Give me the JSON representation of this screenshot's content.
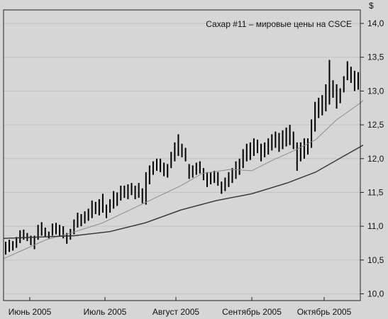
{
  "chart_data": {
    "type": "bar",
    "title": "Сахар #11 – мировые цены на CSCE",
    "ylabel": "$",
    "ylim": [
      9.9,
      14.2
    ],
    "y_ticks": [
      "14,0",
      "13,5",
      "13,0",
      "12,5",
      "12,0",
      "11,5",
      "11,0",
      "10,5",
      "10,0"
    ],
    "y_tick_values": [
      14.0,
      13.5,
      13.0,
      12.5,
      12.0,
      11.5,
      11.0,
      10.5,
      10.0
    ],
    "x_ticks": [
      "Июнь 2005",
      "Июль 2005",
      "Август 2005",
      "Сентябрь 2005",
      "Октябрь 2005"
    ],
    "grid": true,
    "series": [
      {
        "kind": "price_bars",
        "color": "#000000",
        "bars": [
          [
            10.58,
            10.77
          ],
          [
            10.62,
            10.8
          ],
          [
            10.64,
            10.78
          ],
          [
            10.68,
            10.84
          ],
          [
            10.75,
            10.94
          ],
          [
            10.8,
            10.95
          ],
          [
            10.78,
            10.9
          ],
          [
            10.72,
            10.86
          ],
          [
            10.66,
            10.86
          ],
          [
            10.8,
            11.02
          ],
          [
            10.86,
            11.06
          ],
          [
            10.85,
            10.98
          ],
          [
            10.82,
            10.92
          ],
          [
            10.86,
            11.04
          ],
          [
            10.88,
            11.05
          ],
          [
            10.86,
            11.02
          ],
          [
            10.82,
            11.0
          ],
          [
            10.74,
            10.9
          ],
          [
            10.8,
            10.96
          ],
          [
            10.88,
            11.1
          ],
          [
            10.98,
            11.2
          ],
          [
            11.0,
            11.18
          ],
          [
            11.04,
            11.22
          ],
          [
            11.08,
            11.26
          ],
          [
            11.12,
            11.38
          ],
          [
            11.18,
            11.36
          ],
          [
            11.16,
            11.4
          ],
          [
            11.2,
            11.48
          ],
          [
            11.12,
            11.32
          ],
          [
            11.2,
            11.4
          ],
          [
            11.26,
            11.52
          ],
          [
            11.3,
            11.5
          ],
          [
            11.38,
            11.6
          ],
          [
            11.42,
            11.6
          ],
          [
            11.4,
            11.62
          ],
          [
            11.46,
            11.64
          ],
          [
            11.4,
            11.6
          ],
          [
            11.42,
            11.64
          ],
          [
            11.34,
            11.56
          ],
          [
            11.32,
            11.8
          ],
          [
            11.62,
            11.9
          ],
          [
            11.76,
            11.96
          ],
          [
            11.82,
            12.0
          ],
          [
            11.8,
            12.0
          ],
          [
            11.74,
            11.94
          ],
          [
            11.72,
            11.92
          ],
          [
            11.86,
            12.1
          ],
          [
            11.96,
            12.24
          ],
          [
            12.04,
            12.36
          ],
          [
            12.02,
            12.22
          ],
          [
            11.96,
            12.16
          ],
          [
            11.7,
            11.92
          ],
          [
            11.72,
            11.9
          ],
          [
            11.76,
            11.94
          ],
          [
            11.78,
            11.96
          ],
          [
            11.68,
            11.86
          ],
          [
            11.58,
            11.8
          ],
          [
            11.62,
            11.8
          ],
          [
            11.64,
            11.82
          ],
          [
            11.6,
            11.8
          ],
          [
            11.48,
            11.66
          ],
          [
            11.52,
            11.72
          ],
          [
            11.58,
            11.8
          ],
          [
            11.64,
            11.86
          ],
          [
            11.7,
            11.96
          ],
          [
            11.76,
            12.0
          ],
          [
            11.86,
            12.14
          ],
          [
            11.96,
            12.22
          ],
          [
            11.98,
            12.24
          ],
          [
            12.04,
            12.3
          ],
          [
            12.08,
            12.28
          ],
          [
            11.96,
            12.22
          ],
          [
            12.02,
            12.24
          ],
          [
            12.06,
            12.3
          ],
          [
            12.12,
            12.36
          ],
          [
            12.16,
            12.4
          ],
          [
            12.1,
            12.38
          ],
          [
            12.14,
            12.42
          ],
          [
            12.18,
            12.46
          ],
          [
            12.2,
            12.5
          ],
          [
            12.14,
            12.4
          ],
          [
            11.82,
            12.24
          ],
          [
            11.96,
            12.24
          ],
          [
            12.0,
            12.3
          ],
          [
            12.06,
            12.3
          ],
          [
            12.16,
            12.58
          ],
          [
            12.4,
            12.84
          ],
          [
            12.6,
            12.9
          ],
          [
            12.64,
            12.94
          ],
          [
            12.7,
            13.1
          ],
          [
            12.8,
            13.46
          ],
          [
            12.9,
            13.16
          ],
          [
            12.74,
            13.1
          ],
          [
            12.82,
            13.04
          ],
          [
            12.98,
            13.22
          ],
          [
            13.16,
            13.44
          ],
          [
            13.12,
            13.36
          ],
          [
            13.0,
            13.3
          ],
          [
            13.02,
            13.28
          ]
        ]
      },
      {
        "kind": "moving_average_short",
        "color": "#8c8c8c",
        "values": [
          [
            0,
            10.52
          ],
          [
            30,
            10.66
          ],
          [
            60,
            10.8
          ],
          [
            95,
            10.9
          ],
          [
            140,
            11.05
          ],
          [
            200,
            11.35
          ],
          [
            250,
            11.6
          ],
          [
            280,
            11.78
          ],
          [
            320,
            11.84
          ],
          [
            350,
            11.82
          ],
          [
            380,
            11.98
          ],
          [
            410,
            12.12
          ],
          [
            440,
            12.28
          ],
          [
            470,
            12.58
          ],
          [
            500,
            12.8
          ],
          [
            507,
            12.86
          ]
        ]
      },
      {
        "kind": "moving_average_long",
        "color": "#333333",
        "values": [
          [
            0,
            10.82
          ],
          [
            50,
            10.84
          ],
          [
            100,
            10.86
          ],
          [
            150,
            10.92
          ],
          [
            200,
            11.05
          ],
          [
            250,
            11.24
          ],
          [
            300,
            11.38
          ],
          [
            350,
            11.48
          ],
          [
            400,
            11.64
          ],
          [
            440,
            11.8
          ],
          [
            480,
            12.04
          ],
          [
            507,
            12.2
          ]
        ]
      }
    ]
  }
}
